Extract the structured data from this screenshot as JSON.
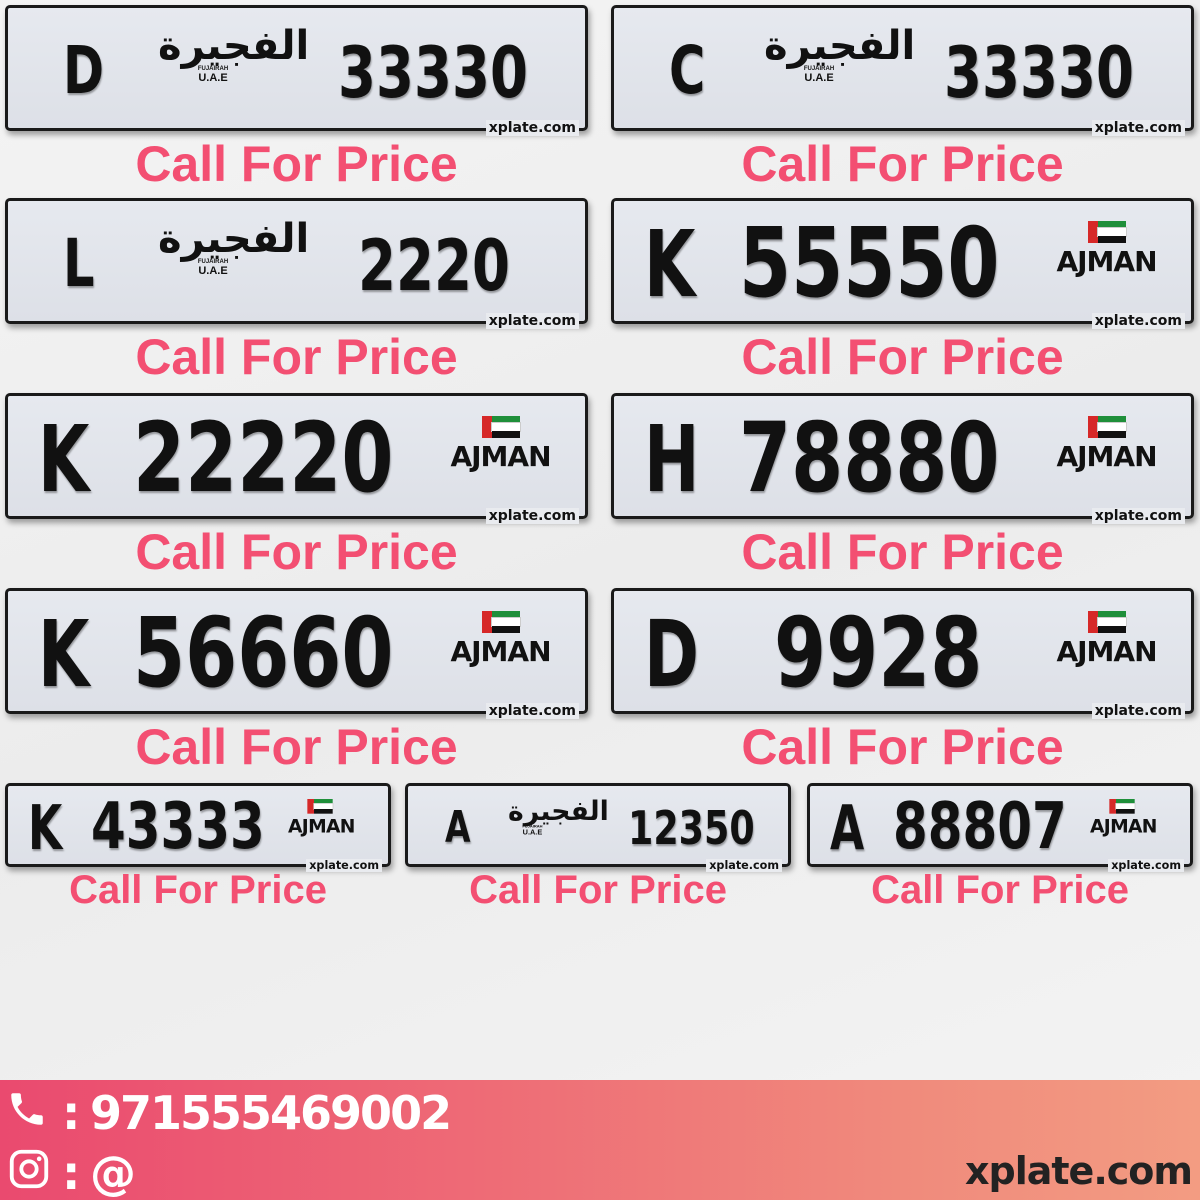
{
  "watermark": "xplate.com",
  "price_label": "Call For Price",
  "fujairah_logo": {
    "arabic": "الفجيرة",
    "english": "FUJAIRAH",
    "country": "U.A.E"
  },
  "ajman_logo": {
    "name": "AJMAN"
  },
  "flag_colors": {
    "red": "#d62828",
    "green": "#1f8f3a",
    "white": "#ffffff",
    "black": "#111111"
  },
  "accent_color": "#f34f72",
  "plates": [
    {
      "emirate": "fujairah",
      "letter": "D",
      "number": "33330"
    },
    {
      "emirate": "fujairah",
      "letter": "C",
      "number": "33330"
    },
    {
      "emirate": "fujairah",
      "letter": "L",
      "number": "2220"
    },
    {
      "emirate": "ajman",
      "letter": "K",
      "number": "55550"
    },
    {
      "emirate": "ajman",
      "letter": "K",
      "number": "22220"
    },
    {
      "emirate": "ajman",
      "letter": "H",
      "number": "78880"
    },
    {
      "emirate": "ajman",
      "letter": "K",
      "number": "56660"
    },
    {
      "emirate": "ajman",
      "letter": "D",
      "number": "9928"
    },
    {
      "emirate": "ajman",
      "letter": "K",
      "number": "43333"
    },
    {
      "emirate": "fujairah",
      "letter": "A",
      "number": "12350"
    },
    {
      "emirate": "ajman",
      "letter": "A",
      "number": "88807"
    }
  ],
  "footer": {
    "phone_icon": "phone-icon",
    "phone": "971555469002",
    "instagram_icon": "instagram-icon",
    "instagram": "@",
    "separator": ":",
    "site": "xplate.com"
  }
}
